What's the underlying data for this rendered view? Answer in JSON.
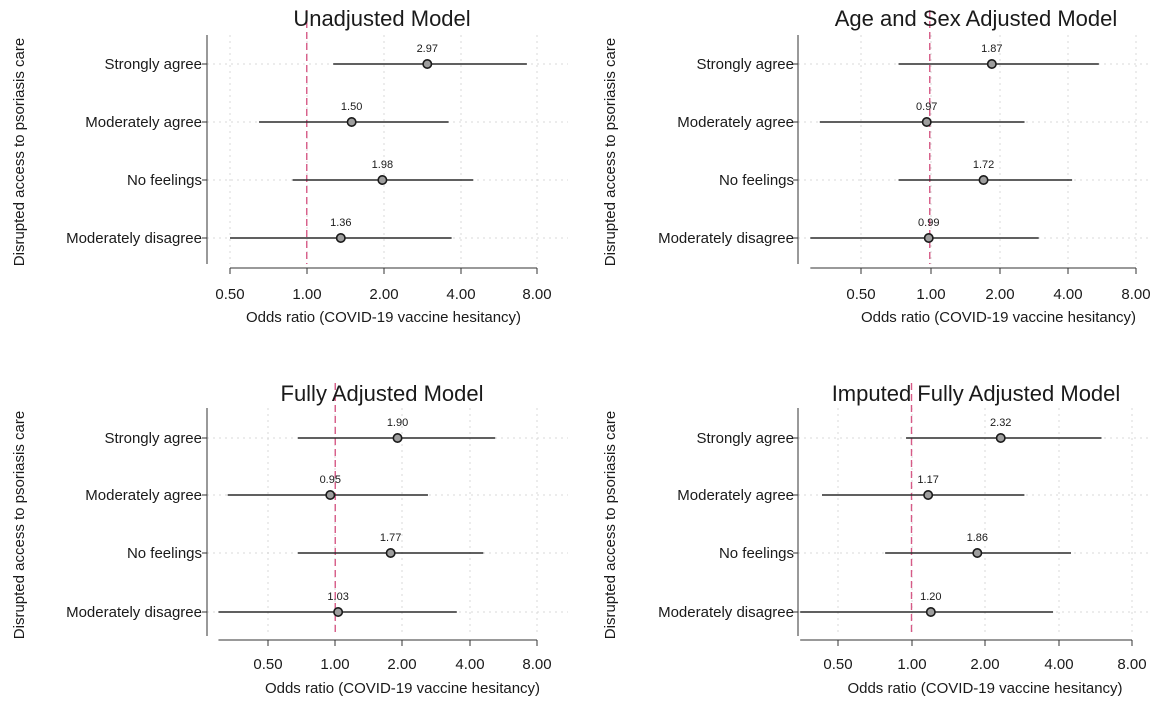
{
  "colors": {
    "reference_line": "#d65a87",
    "ci_line": "#2b2b2b",
    "marker": "#9e9e9e",
    "grid": "#d9d9d9"
  },
  "chart_data": [
    {
      "type": "scatter",
      "title": "Unadjusted Model",
      "ylabel": "Disrupted access to psoriasis care",
      "xlabel": "Odds ratio (COVID-19 vaccine hesitancy)",
      "x_scale": "log",
      "xlim": [
        0.5,
        8.0
      ],
      "xticks": [
        "0.50",
        "1.00",
        "2.00",
        "4.00",
        "8.00"
      ],
      "reference_line": 1.0,
      "categories": [
        "Strongly agree",
        "Moderately agree",
        "No feelings",
        "Moderately disagree"
      ],
      "values": [
        2.97,
        1.5,
        1.98,
        1.36
      ],
      "labels": [
        "2.97",
        "1.50",
        "1.98",
        "1.36"
      ],
      "ci_low": [
        1.27,
        0.65,
        0.88,
        0.5
      ],
      "ci_high": [
        7.3,
        3.6,
        4.5,
        3.7
      ],
      "grid": true
    },
    {
      "type": "scatter",
      "title": "Age and Sex Adjusted Model",
      "ylabel": "Disrupted access to psoriasis care",
      "xlabel": "Odds ratio (COVID-19 vaccine hesitancy)",
      "x_scale": "log",
      "xlim": [
        0.3,
        8.0
      ],
      "xticks": [
        "0.50",
        "1.00",
        "2.00",
        "4.00",
        "8.00"
      ],
      "reference_line": 1.0,
      "categories": [
        "Strongly agree",
        "Moderately agree",
        "No feelings",
        "Moderately disagree"
      ],
      "values": [
        1.87,
        0.97,
        1.72,
        0.99
      ],
      "labels": [
        "1.87",
        "0.97",
        "1.72",
        "0.99"
      ],
      "ci_low": [
        0.73,
        0.33,
        0.73,
        0.3
      ],
      "ci_high": [
        5.5,
        2.6,
        4.2,
        3.0
      ],
      "grid": true
    },
    {
      "type": "scatter",
      "title": "Fully Adjusted Model",
      "ylabel": "Disrupted access to psoriasis care",
      "xlabel": "Odds ratio (COVID-19 vaccine hesitancy)",
      "x_scale": "log",
      "xlim": [
        0.3,
        8.0
      ],
      "xticks": [
        "0.50",
        "1.00",
        "2.00",
        "4.00",
        "8.00"
      ],
      "reference_line": 1.0,
      "categories": [
        "Strongly agree",
        "Moderately agree",
        "No feelings",
        "Moderately disagree"
      ],
      "values": [
        1.9,
        0.95,
        1.77,
        1.03
      ],
      "labels": [
        "1.90",
        "0.95",
        "1.77",
        "1.03"
      ],
      "ci_low": [
        0.68,
        0.33,
        0.68,
        0.3
      ],
      "ci_high": [
        5.2,
        2.6,
        4.6,
        3.5
      ],
      "grid": true
    },
    {
      "type": "scatter",
      "title": "Imputed Fully Adjusted Model",
      "ylabel": "Disrupted access to psoriasis care",
      "xlabel": "Odds ratio (COVID-19 vaccine hesitancy)",
      "x_scale": "log",
      "xlim": [
        0.35,
        8.0
      ],
      "xticks": [
        "0.50",
        "1.00",
        "2.00",
        "4.00",
        "8.00"
      ],
      "reference_line": 1.0,
      "categories": [
        "Strongly agree",
        "Moderately agree",
        "No feelings",
        "Moderately disagree"
      ],
      "values": [
        2.32,
        1.17,
        1.86,
        1.2
      ],
      "labels": [
        "2.32",
        "1.17",
        "1.86",
        "1.20"
      ],
      "ci_low": [
        0.95,
        0.43,
        0.78,
        0.35
      ],
      "ci_high": [
        6.0,
        2.9,
        4.5,
        3.8
      ],
      "grid": true
    }
  ]
}
